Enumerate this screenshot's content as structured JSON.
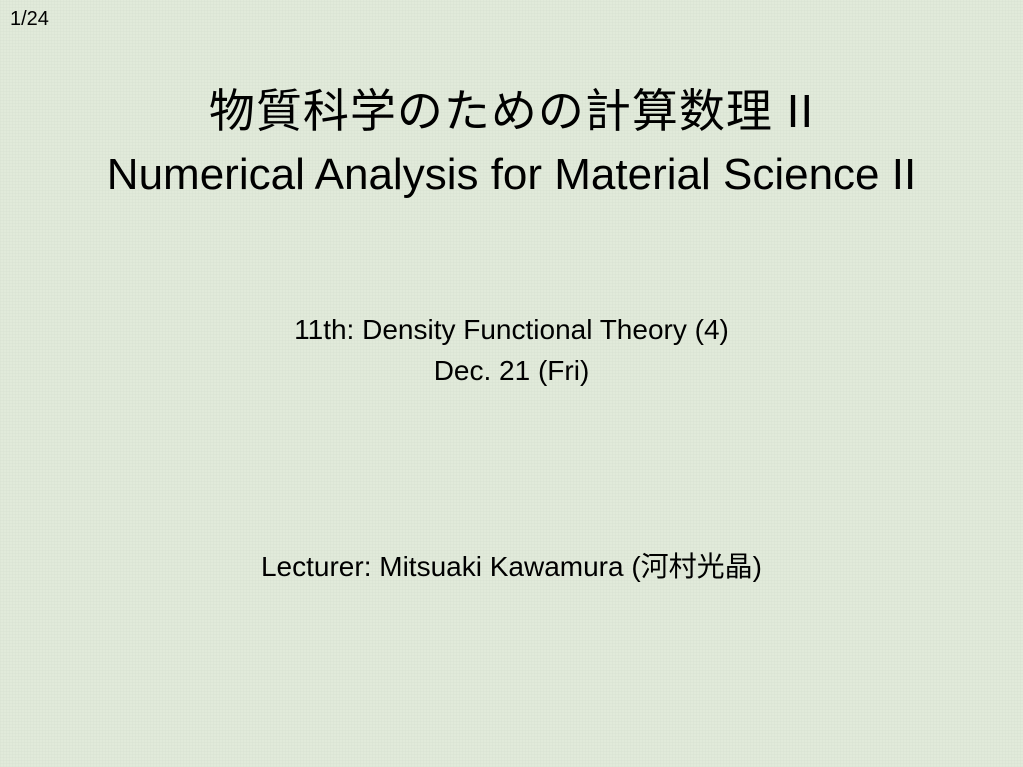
{
  "page_number": "1/24",
  "title": {
    "japanese": "物質科学のための計算数理 II",
    "english": "Numerical Analysis for Material Science II"
  },
  "subtitle": {
    "lecture": "11th: Density Functional Theory (4)",
    "date": "Dec. 21 (Fri)"
  },
  "lecturer": "Lecturer: Mitsuaki Kawamura (河村光晶)",
  "colors": {
    "background": "#e1eada",
    "text": "#000000"
  },
  "fonts": {
    "title_jp_size": 46,
    "title_en_size": 44,
    "subtitle_size": 28,
    "lecturer_size": 28,
    "page_number_size": 20
  }
}
